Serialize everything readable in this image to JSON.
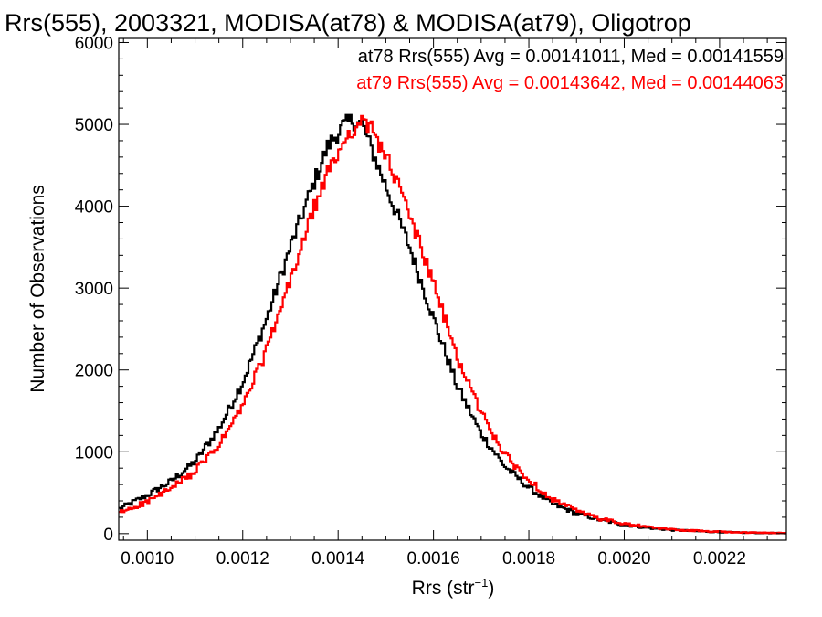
{
  "chart_data": {
    "type": "line",
    "title": "Rrs(555), 2003321, MODISA(at78) & MODISA(at79), Oligotrop",
    "xlabel": "Rrs (str",
    "xlabel_sup": "−1",
    "xlabel_close": ")",
    "ylabel": "Number of Observations",
    "xlim": [
      0.00094,
      0.00234
    ],
    "ylim": [
      -80,
      6050
    ],
    "x_ticks": [
      0.001,
      0.0012,
      0.0014,
      0.0016,
      0.0018,
      0.002,
      0.0022
    ],
    "x_tick_labels": [
      "0.0010",
      "0.0012",
      "0.0014",
      "0.0016",
      "0.0018",
      "0.0020",
      "0.0022"
    ],
    "y_ticks": [
      0,
      1000,
      2000,
      3000,
      4000,
      5000,
      6000
    ],
    "y_tick_labels": [
      "0",
      "1000",
      "2000",
      "3000",
      "4000",
      "5000",
      "6000"
    ],
    "grid": false,
    "legend_position": "top-right",
    "series": [
      {
        "name": "at78",
        "color": "#000000",
        "legend_text": "at78 Rrs(555) Avg = 0.00141011, Med = 0.00141559",
        "x": [
          0.00094,
          0.001,
          0.00105,
          0.0011,
          0.00115,
          0.0012,
          0.00125,
          0.0013,
          0.00135,
          0.00138,
          0.00141,
          0.00143,
          0.00145,
          0.00147,
          0.0015,
          0.00155,
          0.0016,
          0.00165,
          0.0017,
          0.00175,
          0.0018,
          0.00185,
          0.0019,
          0.00195,
          0.002,
          0.00205,
          0.0021,
          0.00215,
          0.0022,
          0.00225,
          0.0023,
          0.00234
        ],
        "y": [
          300,
          470,
          640,
          880,
          1280,
          1850,
          2620,
          3500,
          4300,
          4750,
          4970,
          5050,
          5000,
          4700,
          4250,
          3500,
          2630,
          1800,
          1220,
          820,
          560,
          360,
          250,
          165,
          110,
          70,
          45,
          30,
          20,
          12,
          8,
          5
        ]
      },
      {
        "name": "at79",
        "color": "#ff0000",
        "legend_text": "at79 Rrs(555) Avg = 0.00143642, Med = 0.00144063",
        "x": [
          0.00094,
          0.001,
          0.00105,
          0.0011,
          0.00115,
          0.0012,
          0.00125,
          0.0013,
          0.00135,
          0.00138,
          0.00141,
          0.00143,
          0.00145,
          0.00147,
          0.0015,
          0.00155,
          0.0016,
          0.00165,
          0.0017,
          0.00175,
          0.0018,
          0.00185,
          0.0019,
          0.00195,
          0.002,
          0.00205,
          0.0021,
          0.00215,
          0.0022,
          0.00225,
          0.0023,
          0.00234
        ],
        "y": [
          250,
          390,
          550,
          760,
          1080,
          1560,
          2240,
          3090,
          3980,
          4420,
          4770,
          4950,
          5000,
          4950,
          4620,
          3900,
          3050,
          2150,
          1480,
          960,
          650,
          420,
          280,
          180,
          120,
          80,
          50,
          35,
          22,
          14,
          9,
          6
        ]
      }
    ]
  }
}
